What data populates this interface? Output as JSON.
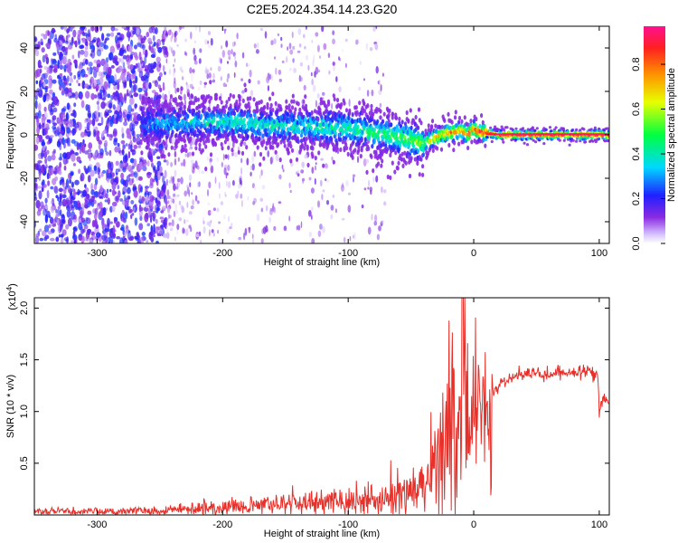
{
  "title": "C2E5.2024.354.14.23.G20",
  "chart_data": [
    {
      "type": "heatmap",
      "xlabel": "Height of straight line (km)",
      "ylabel": "Frequency (Hz)",
      "xlim": [
        -350,
        108
      ],
      "ylim": [
        -50,
        50
      ],
      "xticks": [
        -300,
        -200,
        -100,
        0,
        100
      ],
      "yticks": [
        -40,
        -20,
        0,
        20,
        40
      ],
      "colorbar": {
        "label": "Normalized spectral amplitude",
        "range": [
          0,
          0.97
        ],
        "ticks": [
          0.0,
          0.2,
          0.4,
          0.6,
          0.8
        ],
        "colormap": "rainbow"
      },
      "ridge": {
        "description": "dominant frequency line",
        "x": [
          -265,
          -250,
          -220,
          -200,
          -150,
          -100,
          -70,
          -50,
          -40,
          -30,
          -20,
          -10,
          -5,
          0,
          5,
          10,
          20,
          50,
          100,
          108
        ],
        "y": [
          5,
          5,
          6,
          6,
          4,
          3,
          0,
          -2,
          -4,
          -1,
          1,
          2,
          0,
          3,
          1,
          1,
          0,
          0,
          0,
          0
        ],
        "amplitude": [
          0.25,
          0.35,
          0.35,
          0.4,
          0.4,
          0.45,
          0.5,
          0.55,
          0.6,
          0.75,
          0.8,
          0.8,
          0.85,
          0.9,
          0.9,
          0.9,
          0.95,
          0.95,
          0.95,
          0.95
        ]
      },
      "noise_region": {
        "x": [
          -350,
          -245
        ],
        "amplitude": [
          0.05,
          0.25
        ]
      },
      "sparse_noise_region": {
        "x": [
          -245,
          -70
        ],
        "amplitude": [
          0.02,
          0.15
        ]
      }
    },
    {
      "type": "line",
      "xlabel": "Height of straight line (km)",
      "ylabel": "SNR (10 * v/v)",
      "exponent_label": "(x10",
      "exponent_power": "4",
      "exponent_close": ")",
      "xlim": [
        -350,
        108
      ],
      "ylim": [
        0,
        21000
      ],
      "xticks": [
        -300,
        -200,
        -100,
        0,
        100
      ],
      "yticks": [
        5000,
        10000,
        15000,
        20000
      ],
      "ytick_labels": [
        "0.5",
        "1.0",
        "1.5",
        "2.0"
      ],
      "color": "#e8302a",
      "series": [
        {
          "x": [
            -350,
            -300,
            -250,
            -220,
            -200,
            -150,
            -100,
            -70,
            -50,
            -40,
            -35,
            -30,
            -25,
            -20,
            -17,
            -15,
            -10,
            -8,
            -5,
            0,
            10,
            20,
            30,
            40,
            60,
            80,
            95,
            99,
            100,
            101,
            103,
            108
          ],
          "y": [
            300,
            350,
            450,
            650,
            750,
            1100,
            1300,
            1600,
            2200,
            2800,
            3800,
            5400,
            6500,
            8000,
            14000,
            7800,
            8800,
            21000,
            9500,
            11000,
            10700,
            12500,
            13200,
            13800,
            13700,
            13800,
            13800,
            13500,
            9500,
            11000,
            11200,
            11000
          ]
        }
      ]
    }
  ]
}
